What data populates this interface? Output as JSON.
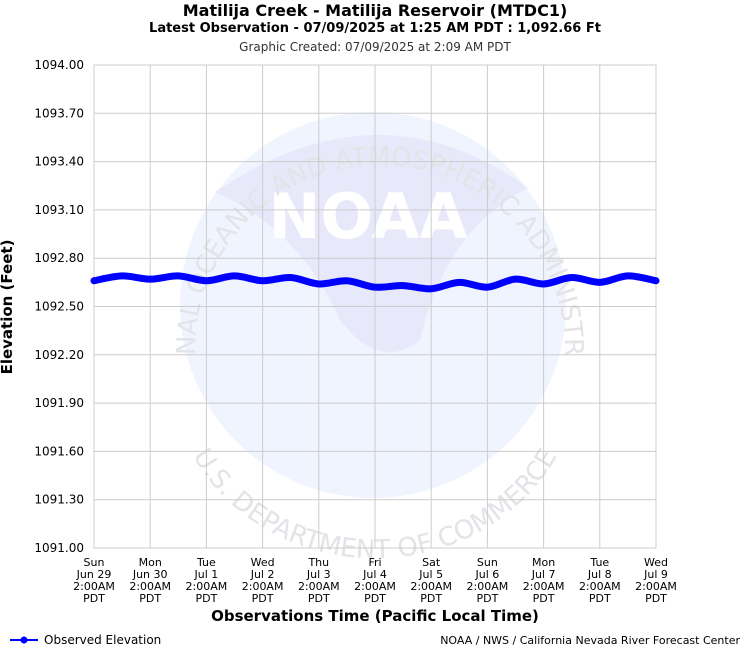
{
  "header": {
    "title": "Matilija Creek - Matilija Reservoir (MTDC1)",
    "subtitle": "Latest Observation - 07/09/2025 at 1:25 AM PDT : 1,092.66 Ft",
    "created": "Graphic Created: 07/09/2025 at 2:09 AM PDT"
  },
  "watermark": {
    "logo_text": "NOAA",
    "top_arc": "NATIONAL OCEANIC AND ATMOSPHERIC ADMINISTRATION",
    "bottom_arc": "U.S. DEPARTMENT OF COMMERCE"
  },
  "legend": {
    "label": "Observed Elevation",
    "icon": "line-dot-icon"
  },
  "credit": "NOAA / NWS / California Nevada River Forecast Center",
  "colors": {
    "series": "#0000ff",
    "grid": "#cccccc",
    "watermark": "#e6e9fb"
  },
  "chart_data": {
    "type": "line",
    "title": "Matilija Creek - Matilija Reservoir (MTDC1)",
    "xlabel": "Observations Time (Pacific Local Time)",
    "ylabel": "Elevation (Feet)",
    "ylim": [
      1091.0,
      1094.0
    ],
    "yticks": [
      "1091.00",
      "1091.30",
      "1091.60",
      "1091.90",
      "1092.20",
      "1092.50",
      "1092.80",
      "1093.10",
      "1093.40",
      "1093.70",
      "1094.00"
    ],
    "xticks": [
      {
        "lines": [
          "Sun",
          "Jun 29",
          "2:00AM",
          "PDT"
        ]
      },
      {
        "lines": [
          "Mon",
          "Jun 30",
          "2:00AM",
          "PDT"
        ]
      },
      {
        "lines": [
          "Tue",
          "Jul 1",
          "2:00AM",
          "PDT"
        ]
      },
      {
        "lines": [
          "Wed",
          "Jul 2",
          "2:00AM",
          "PDT"
        ]
      },
      {
        "lines": [
          "Thu",
          "Jul 3",
          "2:00AM",
          "PDT"
        ]
      },
      {
        "lines": [
          "Fri",
          "Jul 4",
          "2:00AM",
          "PDT"
        ]
      },
      {
        "lines": [
          "Sat",
          "Jul 5",
          "2:00AM",
          "PDT"
        ]
      },
      {
        "lines": [
          "Sun",
          "Jul 6",
          "2:00AM",
          "PDT"
        ]
      },
      {
        "lines": [
          "Mon",
          "Jul 7",
          "2:00AM",
          "PDT"
        ]
      },
      {
        "lines": [
          "Tue",
          "Jul 8",
          "2:00AM",
          "PDT"
        ]
      },
      {
        "lines": [
          "Wed",
          "Jul 9",
          "2:00AM",
          "PDT"
        ]
      }
    ],
    "grid": true,
    "legend_position": "bottom-left",
    "series": [
      {
        "name": "Observed Elevation",
        "x": [
          "06/29 02:00",
          "06/29 14:00",
          "06/30 02:00",
          "06/30 14:00",
          "07/01 02:00",
          "07/01 14:00",
          "07/02 02:00",
          "07/02 14:00",
          "07/03 02:00",
          "07/03 14:00",
          "07/04 02:00",
          "07/04 14:00",
          "07/05 02:00",
          "07/05 14:00",
          "07/06 02:00",
          "07/06 14:00",
          "07/07 02:00",
          "07/07 14:00",
          "07/08 02:00",
          "07/08 14:00",
          "07/09 02:00"
        ],
        "values": [
          1092.66,
          1092.69,
          1092.67,
          1092.69,
          1092.66,
          1092.69,
          1092.66,
          1092.68,
          1092.64,
          1092.66,
          1092.62,
          1092.63,
          1092.61,
          1092.65,
          1092.62,
          1092.67,
          1092.64,
          1092.68,
          1092.65,
          1092.69,
          1092.66
        ]
      }
    ]
  }
}
